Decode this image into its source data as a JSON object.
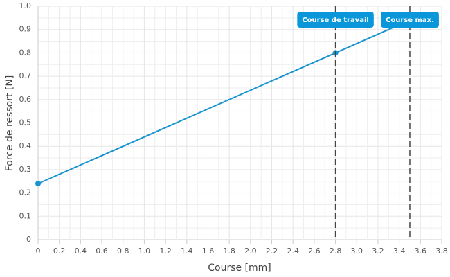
{
  "chart_data": {
    "type": "line",
    "xlabel": "Course [mm]",
    "ylabel": "Force de ressort [N]",
    "xlim": [
      0,
      3.8
    ],
    "xticks": [
      0,
      0.2,
      0.4,
      0.6,
      0.8,
      {
        "value": 1,
        "label": "1.0"
      },
      1.2,
      1.4,
      1.6,
      1.8,
      {
        "value": 2,
        "label": "2.0"
      },
      2.2,
      2.4,
      2.6,
      2.8,
      {
        "value": 3,
        "label": "3.0"
      },
      3.2,
      3.4,
      3.6,
      3.8
    ],
    "ylim": [
      0,
      1
    ],
    "yticks": [
      0,
      0.1,
      0.2,
      0.3,
      0.4,
      0.5,
      0.6,
      0.7,
      0.8,
      0.9,
      {
        "value": 1,
        "label": "1.0"
      }
    ],
    "grid": true,
    "minor_grid": true,
    "series": [
      {
        "color": "#1a94d0",
        "x": [
          0,
          2.8,
          3.5
        ],
        "values": [
          0.24,
          0.8,
          0.94
        ]
      }
    ],
    "marker_points": [
      {
        "x": 0,
        "y": 0.24
      },
      {
        "x": 2.8,
        "y": 0.8
      }
    ],
    "reference_lines": [
      {
        "x": 2.8,
        "label": "Course de travail",
        "color": "#0a97d9"
      },
      {
        "x": 3.5,
        "label": "Course max.",
        "color": "#0a97d9"
      }
    ]
  }
}
